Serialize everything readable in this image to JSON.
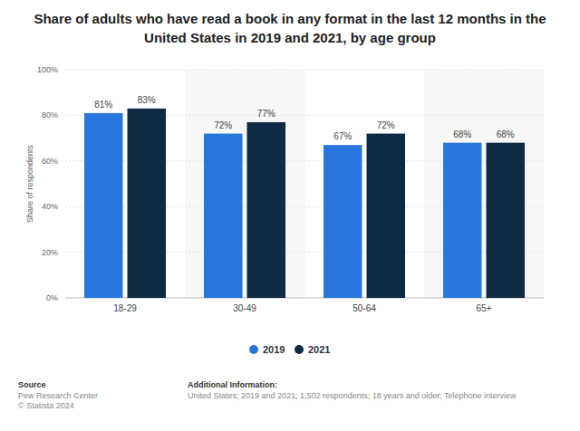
{
  "chart_data": {
    "type": "bar",
    "title": "Share of adults who have read a book in any format in the last 12 months in the United States in 2019 and 2021, by age group",
    "y_label": "Share of respondents",
    "categories": [
      "18-29",
      "30-49",
      "50-64",
      "65+"
    ],
    "series": [
      {
        "name": "2019",
        "color": "#2876dd",
        "values": [
          81,
          72,
          67,
          68
        ],
        "value_labels": [
          "81%",
          "72%",
          "67%",
          "68%"
        ]
      },
      {
        "name": "2021",
        "color": "#0f2a44",
        "values": [
          83,
          77,
          72,
          68
        ],
        "value_labels": [
          "83%",
          "77%",
          "72%",
          "68%"
        ]
      }
    ],
    "ylim": [
      0,
      100
    ],
    "yticks": [
      {
        "value": 0,
        "label": "0%"
      },
      {
        "value": 20,
        "label": "20%"
      },
      {
        "value": 40,
        "label": "40%"
      },
      {
        "value": 60,
        "label": "60%"
      },
      {
        "value": 80,
        "label": "80%"
      },
      {
        "value": 100,
        "label": "100%"
      }
    ],
    "grid": true,
    "legend": "bottom",
    "data_labels": true,
    "source": {
      "heading": "Source",
      "lines": [
        "Pew Research Center",
        "© Statista 2024"
      ]
    },
    "additional_info": {
      "heading": "Additional Information:",
      "lines": [
        "United States; 2019 and 2021; 1,502 respondents; 18 years and older; Telephone interview"
      ]
    }
  }
}
